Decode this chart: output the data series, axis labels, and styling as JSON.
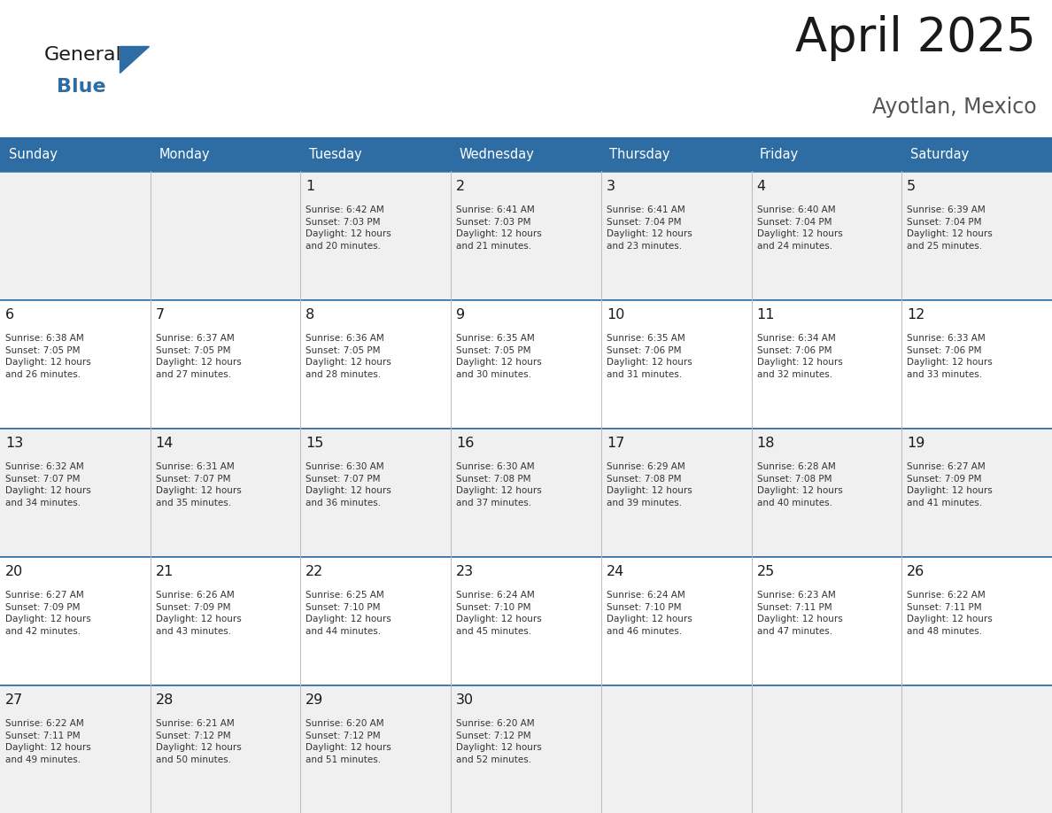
{
  "title": "April 2025",
  "subtitle": "Ayotlan, Mexico",
  "header_bg": "#2E6DA4",
  "header_text_color": "#FFFFFF",
  "cell_bg_even": "#F0F0F0",
  "cell_bg_odd": "#FFFFFF",
  "day_names": [
    "Sunday",
    "Monday",
    "Tuesday",
    "Wednesday",
    "Thursday",
    "Friday",
    "Saturday"
  ],
  "grid_color": "#BBBBBB",
  "title_color": "#1a1a1a",
  "number_color": "#1a1a1a",
  "text_color": "#333333",
  "logo_general_color": "#1a1a1a",
  "logo_blue_color": "#2E6DA4",
  "weeks": [
    [
      {
        "day": null,
        "info": null
      },
      {
        "day": null,
        "info": null
      },
      {
        "day": 1,
        "info": "Sunrise: 6:42 AM\nSunset: 7:03 PM\nDaylight: 12 hours\nand 20 minutes."
      },
      {
        "day": 2,
        "info": "Sunrise: 6:41 AM\nSunset: 7:03 PM\nDaylight: 12 hours\nand 21 minutes."
      },
      {
        "day": 3,
        "info": "Sunrise: 6:41 AM\nSunset: 7:04 PM\nDaylight: 12 hours\nand 23 minutes."
      },
      {
        "day": 4,
        "info": "Sunrise: 6:40 AM\nSunset: 7:04 PM\nDaylight: 12 hours\nand 24 minutes."
      },
      {
        "day": 5,
        "info": "Sunrise: 6:39 AM\nSunset: 7:04 PM\nDaylight: 12 hours\nand 25 minutes."
      }
    ],
    [
      {
        "day": 6,
        "info": "Sunrise: 6:38 AM\nSunset: 7:05 PM\nDaylight: 12 hours\nand 26 minutes."
      },
      {
        "day": 7,
        "info": "Sunrise: 6:37 AM\nSunset: 7:05 PM\nDaylight: 12 hours\nand 27 minutes."
      },
      {
        "day": 8,
        "info": "Sunrise: 6:36 AM\nSunset: 7:05 PM\nDaylight: 12 hours\nand 28 minutes."
      },
      {
        "day": 9,
        "info": "Sunrise: 6:35 AM\nSunset: 7:05 PM\nDaylight: 12 hours\nand 30 minutes."
      },
      {
        "day": 10,
        "info": "Sunrise: 6:35 AM\nSunset: 7:06 PM\nDaylight: 12 hours\nand 31 minutes."
      },
      {
        "day": 11,
        "info": "Sunrise: 6:34 AM\nSunset: 7:06 PM\nDaylight: 12 hours\nand 32 minutes."
      },
      {
        "day": 12,
        "info": "Sunrise: 6:33 AM\nSunset: 7:06 PM\nDaylight: 12 hours\nand 33 minutes."
      }
    ],
    [
      {
        "day": 13,
        "info": "Sunrise: 6:32 AM\nSunset: 7:07 PM\nDaylight: 12 hours\nand 34 minutes."
      },
      {
        "day": 14,
        "info": "Sunrise: 6:31 AM\nSunset: 7:07 PM\nDaylight: 12 hours\nand 35 minutes."
      },
      {
        "day": 15,
        "info": "Sunrise: 6:30 AM\nSunset: 7:07 PM\nDaylight: 12 hours\nand 36 minutes."
      },
      {
        "day": 16,
        "info": "Sunrise: 6:30 AM\nSunset: 7:08 PM\nDaylight: 12 hours\nand 37 minutes."
      },
      {
        "day": 17,
        "info": "Sunrise: 6:29 AM\nSunset: 7:08 PM\nDaylight: 12 hours\nand 39 minutes."
      },
      {
        "day": 18,
        "info": "Sunrise: 6:28 AM\nSunset: 7:08 PM\nDaylight: 12 hours\nand 40 minutes."
      },
      {
        "day": 19,
        "info": "Sunrise: 6:27 AM\nSunset: 7:09 PM\nDaylight: 12 hours\nand 41 minutes."
      }
    ],
    [
      {
        "day": 20,
        "info": "Sunrise: 6:27 AM\nSunset: 7:09 PM\nDaylight: 12 hours\nand 42 minutes."
      },
      {
        "day": 21,
        "info": "Sunrise: 6:26 AM\nSunset: 7:09 PM\nDaylight: 12 hours\nand 43 minutes."
      },
      {
        "day": 22,
        "info": "Sunrise: 6:25 AM\nSunset: 7:10 PM\nDaylight: 12 hours\nand 44 minutes."
      },
      {
        "day": 23,
        "info": "Sunrise: 6:24 AM\nSunset: 7:10 PM\nDaylight: 12 hours\nand 45 minutes."
      },
      {
        "day": 24,
        "info": "Sunrise: 6:24 AM\nSunset: 7:10 PM\nDaylight: 12 hours\nand 46 minutes."
      },
      {
        "day": 25,
        "info": "Sunrise: 6:23 AM\nSunset: 7:11 PM\nDaylight: 12 hours\nand 47 minutes."
      },
      {
        "day": 26,
        "info": "Sunrise: 6:22 AM\nSunset: 7:11 PM\nDaylight: 12 hours\nand 48 minutes."
      }
    ],
    [
      {
        "day": 27,
        "info": "Sunrise: 6:22 AM\nSunset: 7:11 PM\nDaylight: 12 hours\nand 49 minutes."
      },
      {
        "day": 28,
        "info": "Sunrise: 6:21 AM\nSunset: 7:12 PM\nDaylight: 12 hours\nand 50 minutes."
      },
      {
        "day": 29,
        "info": "Sunrise: 6:20 AM\nSunset: 7:12 PM\nDaylight: 12 hours\nand 51 minutes."
      },
      {
        "day": 30,
        "info": "Sunrise: 6:20 AM\nSunset: 7:12 PM\nDaylight: 12 hours\nand 52 minutes."
      },
      {
        "day": null,
        "info": null
      },
      {
        "day": null,
        "info": null
      },
      {
        "day": null,
        "info": null
      }
    ]
  ]
}
